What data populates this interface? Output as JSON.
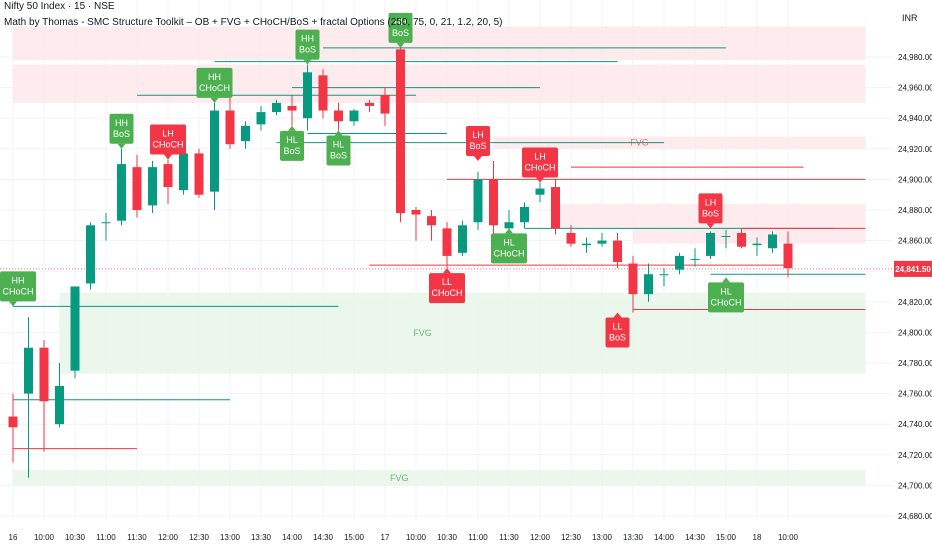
{
  "header": {
    "title": "Nifty 50 Index · 15 · NSE",
    "indicator": "Math by Thomas - SMC Structure Toolkit – OB + FVG + CHoCH/BoS + fractal Options (250, 75, 0, 21, 1.2, 20, 5)"
  },
  "price_axis": {
    "currency": "INR"
  },
  "colors": {
    "up": "#089981",
    "down": "#f23645",
    "label_green": "#4caf50",
    "label_red": "#f23645",
    "grid": "#f0f3fa",
    "bull_zone": "#e8f5e9",
    "bear_zone": "#fde8ea",
    "price_badge": "#f23645"
  },
  "chart_data": {
    "type": "candlestick",
    "ylim": [
      24675,
      25000
    ],
    "y_ticks": [
      24680,
      24700,
      24720,
      24740,
      24760,
      24780,
      24800,
      24820,
      24840,
      24860,
      24880,
      24900,
      24920,
      24940,
      24960,
      24980
    ],
    "y_tick_labels": [
      "24,680.00",
      "24,700.00",
      "24,720.00",
      "24,740.00",
      "24,760.00",
      "24,780.00",
      "24,800.00",
      "24,820.00",
      "24,840.00",
      "24,860.00",
      "24,880.00",
      "24,900.00",
      "24,920.00",
      "24,940.00",
      "24,960.00",
      "24,980.00"
    ],
    "x_ticks": [
      {
        "i": 0,
        "label": "16"
      },
      {
        "i": 2,
        "label": "10:00"
      },
      {
        "i": 4,
        "label": "10:30"
      },
      {
        "i": 6,
        "label": "11:00"
      },
      {
        "i": 8,
        "label": "11:30"
      },
      {
        "i": 10,
        "label": "12:00"
      },
      {
        "i": 12,
        "label": "12:30"
      },
      {
        "i": 14,
        "label": "13:00"
      },
      {
        "i": 16,
        "label": "13:30"
      },
      {
        "i": 18,
        "label": "14:00"
      },
      {
        "i": 20,
        "label": "14:30"
      },
      {
        "i": 22,
        "label": "15:00"
      },
      {
        "i": 24,
        "label": "17"
      },
      {
        "i": 26,
        "label": "10:00"
      },
      {
        "i": 28,
        "label": "10:30"
      },
      {
        "i": 30,
        "label": "11:00"
      },
      {
        "i": 32,
        "label": "11:30"
      },
      {
        "i": 34,
        "label": "12:00"
      },
      {
        "i": 36,
        "label": "12:30"
      },
      {
        "i": 38,
        "label": "13:00"
      },
      {
        "i": 40,
        "label": "13:30"
      },
      {
        "i": 42,
        "label": "14:00"
      },
      {
        "i": 44,
        "label": "14:30"
      },
      {
        "i": 46,
        "label": "15:00"
      },
      {
        "i": 48,
        "label": "18"
      },
      {
        "i": 50,
        "label": "10:00"
      }
    ],
    "candles": [
      {
        "o": 24745,
        "h": 24760,
        "l": 24715,
        "c": 24738
      },
      {
        "o": 24760,
        "h": 24810,
        "l": 24705,
        "c": 24790
      },
      {
        "o": 24790,
        "h": 24795,
        "l": 24722,
        "c": 24755
      },
      {
        "o": 24740,
        "h": 24780,
        "l": 24738,
        "c": 24765
      },
      {
        "o": 24775,
        "h": 24830,
        "l": 24770,
        "c": 24830
      },
      {
        "o": 24832,
        "h": 24872,
        "l": 24828,
        "c": 24870
      },
      {
        "o": 24872,
        "h": 24878,
        "l": 24860,
        "c": 24872
      },
      {
        "o": 24873,
        "h": 24920,
        "l": 24870,
        "c": 24910
      },
      {
        "o": 24908,
        "h": 24916,
        "l": 24875,
        "c": 24880
      },
      {
        "o": 24883,
        "h": 24912,
        "l": 24878,
        "c": 24908
      },
      {
        "o": 24910,
        "h": 24913,
        "l": 24884,
        "c": 24895
      },
      {
        "o": 24893,
        "h": 24920,
        "l": 24890,
        "c": 24917
      },
      {
        "o": 24917,
        "h": 24920,
        "l": 24888,
        "c": 24890
      },
      {
        "o": 24892,
        "h": 24950,
        "l": 24880,
        "c": 24945
      },
      {
        "o": 24945,
        "h": 24955,
        "l": 24920,
        "c": 24923
      },
      {
        "o": 24925,
        "h": 24938,
        "l": 24920,
        "c": 24935
      },
      {
        "o": 24936,
        "h": 24948,
        "l": 24932,
        "c": 24944
      },
      {
        "o": 24944,
        "h": 24952,
        "l": 24942,
        "c": 24950
      },
      {
        "o": 24948,
        "h": 24955,
        "l": 24935,
        "c": 24945
      },
      {
        "o": 24940,
        "h": 24975,
        "l": 24932,
        "c": 24970
      },
      {
        "o": 24968,
        "h": 24972,
        "l": 24940,
        "c": 24945
      },
      {
        "o": 24945,
        "h": 24950,
        "l": 24932,
        "c": 24938
      },
      {
        "o": 24938,
        "h": 24946,
        "l": 24935,
        "c": 24945
      },
      {
        "o": 24950,
        "h": 24952,
        "l": 24944,
        "c": 24948
      },
      {
        "o": 24955,
        "h": 24960,
        "l": 24935,
        "c": 24943
      },
      {
        "o": 24985,
        "h": 24987,
        "l": 24872,
        "c": 24878
      },
      {
        "o": 24880,
        "h": 24882,
        "l": 24860,
        "c": 24877
      },
      {
        "o": 24876,
        "h": 24880,
        "l": 24860,
        "c": 24870
      },
      {
        "o": 24868,
        "h": 24872,
        "l": 24842,
        "c": 24850
      },
      {
        "o": 24852,
        "h": 24873,
        "l": 24850,
        "c": 24870
      },
      {
        "o": 24872,
        "h": 24905,
        "l": 24867,
        "c": 24900
      },
      {
        "o": 24900,
        "h": 24912,
        "l": 24862,
        "c": 24870
      },
      {
        "o": 24868,
        "h": 24880,
        "l": 24862,
        "c": 24872
      },
      {
        "o": 24872,
        "h": 24885,
        "l": 24868,
        "c": 24882
      },
      {
        "o": 24890,
        "h": 24898,
        "l": 24885,
        "c": 24894
      },
      {
        "o": 24895,
        "h": 24900,
        "l": 24864,
        "c": 24868
      },
      {
        "o": 24865,
        "h": 24870,
        "l": 24856,
        "c": 24858
      },
      {
        "o": 24857,
        "h": 24862,
        "l": 24852,
        "c": 24858
      },
      {
        "o": 24858,
        "h": 24865,
        "l": 24856,
        "c": 24860
      },
      {
        "o": 24860,
        "h": 24865,
        "l": 24842,
        "c": 24846
      },
      {
        "o": 24845,
        "h": 24850,
        "l": 24813,
        "c": 24825
      },
      {
        "o": 24825,
        "h": 24845,
        "l": 24820,
        "c": 24838
      },
      {
        "o": 24838,
        "h": 24842,
        "l": 24830,
        "c": 24838
      },
      {
        "o": 24841,
        "h": 24852,
        "l": 24838,
        "c": 24850
      },
      {
        "o": 24848,
        "h": 24855,
        "l": 24843,
        "c": 24848
      },
      {
        "o": 24850,
        "h": 24866,
        "l": 24848,
        "c": 24865
      },
      {
        "o": 24863,
        "h": 24867,
        "l": 24855,
        "c": 24863
      },
      {
        "o": 24865,
        "h": 24868,
        "l": 24855,
        "c": 24856
      },
      {
        "o": 24857,
        "h": 24862,
        "l": 24850,
        "c": 24858
      },
      {
        "o": 24855,
        "h": 24866,
        "l": 24852,
        "c": 24864
      },
      {
        "o": 24858,
        "h": 24866,
        "l": 24836,
        "c": 24842
      }
    ],
    "zones": [
      {
        "type": "bear",
        "i1": 0,
        "i2": 55,
        "y1": 24978,
        "y2": 25000,
        "label": ""
      },
      {
        "type": "bear",
        "i1": 0,
        "i2": 55,
        "y1": 24950,
        "y2": 24975,
        "label": ""
      },
      {
        "type": "bear",
        "i1": 31,
        "i2": 55,
        "y1": 24920,
        "y2": 24928,
        "label": "FVG"
      },
      {
        "type": "bear",
        "i1": 35,
        "i2": 55,
        "y1": 24868,
        "y2": 24884,
        "label": ""
      },
      {
        "type": "bear",
        "i1": 40,
        "i2": 55,
        "y1": 24858,
        "y2": 24868,
        "label": ""
      },
      {
        "type": "bull",
        "i1": 3,
        "i2": 55,
        "y1": 24773,
        "y2": 24826,
        "label": "FVG"
      },
      {
        "type": "bull",
        "i1": 0,
        "i2": 55,
        "y1": 24700,
        "y2": 24710,
        "label": "FVG"
      }
    ],
    "levels": [
      {
        "color": "green",
        "y": 24986,
        "i1": 20,
        "i2": 46
      },
      {
        "color": "green",
        "y": 24977,
        "i1": 13,
        "i2": 39
      },
      {
        "color": "green",
        "y": 24960,
        "i1": 18,
        "i2": 34
      },
      {
        "color": "green",
        "y": 24955,
        "i1": 8,
        "i2": 26
      },
      {
        "color": "green",
        "y": 24930,
        "i1": 19,
        "i2": 28
      },
      {
        "color": "green",
        "y": 24924,
        "i1": 17,
        "i2": 42
      },
      {
        "color": "red",
        "y": 24908,
        "i1": 36,
        "i2": 51
      },
      {
        "color": "red",
        "y": 24900,
        "i1": 28,
        "i2": 55
      },
      {
        "color": "green",
        "y": 24868,
        "i1": 33,
        "i2": 53
      },
      {
        "color": "red",
        "y": 24868,
        "i1": 47,
        "i2": 55
      },
      {
        "color": "red",
        "y": 24844,
        "i1": 23,
        "i2": 50
      },
      {
        "color": "green",
        "y": 24838,
        "i1": 45,
        "i2": 55
      },
      {
        "color": "green",
        "y": 24817,
        "i1": 0,
        "i2": 21
      },
      {
        "color": "red",
        "y": 24815,
        "i1": 40,
        "i2": 55
      },
      {
        "color": "green",
        "y": 24756,
        "i1": 0,
        "i2": 14
      },
      {
        "color": "red",
        "y": 24724,
        "i1": 0,
        "i2": 8
      }
    ],
    "labels": [
      {
        "text": [
          "HH",
          "BoS"
        ],
        "color": "green",
        "i": 25,
        "y": 24986,
        "pos": "above"
      },
      {
        "text": [
          "HH",
          "BoS"
        ],
        "color": "green",
        "i": 19,
        "y": 24975,
        "pos": "above"
      },
      {
        "text": [
          "HH",
          "CHoCH"
        ],
        "color": "green",
        "i": 13,
        "y": 24950,
        "pos": "above"
      },
      {
        "text": [
          "HH",
          "BoS"
        ],
        "color": "green",
        "i": 7,
        "y": 24920,
        "pos": "above"
      },
      {
        "text": [
          "LH",
          "CHoCH"
        ],
        "color": "red",
        "i": 10,
        "y": 24913,
        "pos": "above"
      },
      {
        "text": [
          "HL",
          "BoS"
        ],
        "color": "green",
        "i": 18,
        "y": 24935,
        "pos": "below"
      },
      {
        "text": [
          "HL",
          "BoS"
        ],
        "color": "green",
        "i": 21,
        "y": 24932,
        "pos": "below"
      },
      {
        "text": [
          "LH",
          "BoS"
        ],
        "color": "red",
        "i": 30,
        "y": 24912,
        "pos": "above"
      },
      {
        "text": [
          "LH",
          "CHoCH"
        ],
        "color": "red",
        "i": 34,
        "y": 24898,
        "pos": "above"
      },
      {
        "text": [
          "HL",
          "CHoCH"
        ],
        "color": "green",
        "i": 32,
        "y": 24868,
        "pos": "below"
      },
      {
        "text": [
          "LL",
          "CHoCH"
        ],
        "color": "red",
        "i": 28,
        "y": 24842,
        "pos": "below"
      },
      {
        "text": [
          "LL",
          "BoS"
        ],
        "color": "red",
        "i": 39,
        "y": 24813,
        "pos": "below"
      },
      {
        "text": [
          "LH",
          "BoS"
        ],
        "color": "red",
        "i": 45,
        "y": 24868,
        "pos": "above"
      },
      {
        "text": [
          "HL",
          "CHoCH"
        ],
        "color": "green",
        "i": 46,
        "y": 24836,
        "pos": "below"
      },
      {
        "text": [
          "HH",
          "CHoCH"
        ],
        "color": "green",
        "i": 0,
        "y": 24817,
        "pos": "above"
      }
    ],
    "last_price": {
      "value": 24841.5,
      "label": "24,841.50"
    }
  }
}
